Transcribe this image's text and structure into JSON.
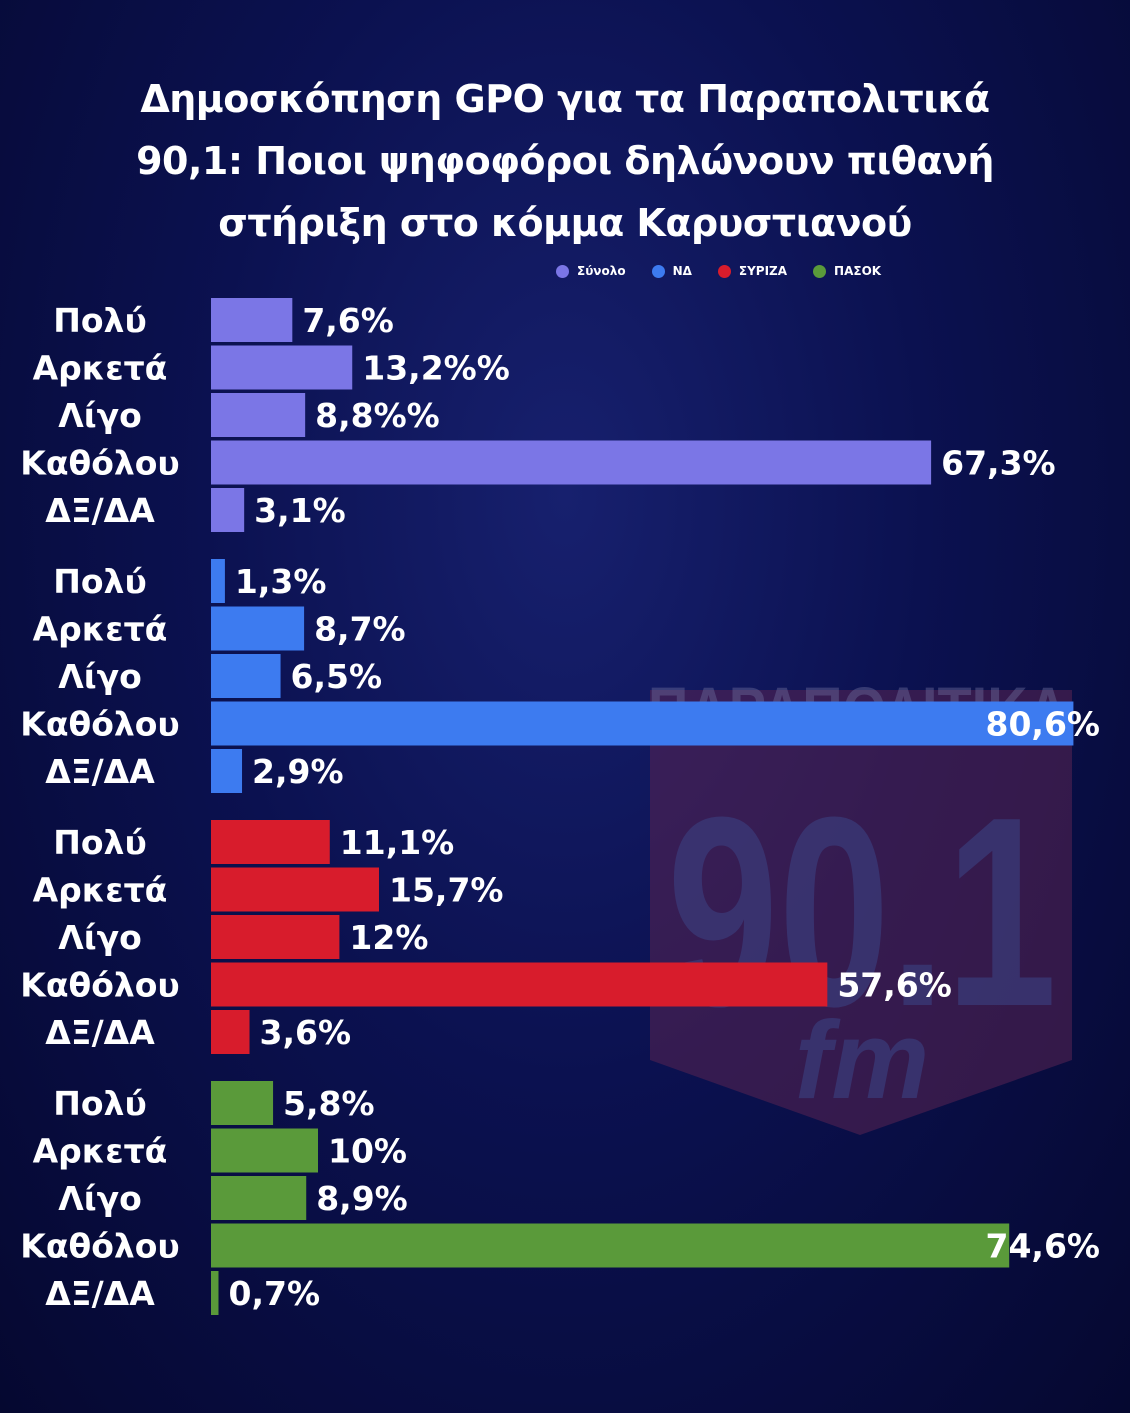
{
  "title_lines": [
    "Δημοσκόπηση GPO για τα Παραπολιτικά",
    "90,1: Ποιοι ψηφοφόροι δηλώνουν πιθανή",
    "στήριξη στο κόμμα Καρυστιανού"
  ],
  "legend": [
    {
      "name": "Σύνολο",
      "color": "#7b76e6"
    },
    {
      "name": "ΝΔ",
      "color": "#3d7bf0"
    },
    {
      "name": "ΣΥΡΙΖΑ",
      "color": "#d81c2c"
    },
    {
      "name": "ΠΑΣΟΚ",
      "color": "#5a9a3a"
    }
  ],
  "watermark": {
    "line1": "ΠΑΡΑΠΟΛΙΤΙΚΑ",
    "line2": "90.1",
    "line3": "fm"
  },
  "chart_data": {
    "type": "bar",
    "orientation": "horizontal",
    "groups": [
      {
        "series": "Σύνολο",
        "color": "#7b76e6",
        "categories": [
          "Πολύ",
          "Αρκετά",
          "Λίγο",
          "Καθόλου",
          "ΔΞ/ΔΑ"
        ],
        "values": [
          7.6,
          13.2,
          8.8,
          67.3,
          3.1
        ],
        "value_labels": [
          "7,6%",
          "13,2%%",
          "8,8%%",
          "67,3%",
          "3,1%"
        ]
      },
      {
        "series": "ΝΔ",
        "color": "#3d7bf0",
        "categories": [
          "Πολύ",
          "Αρκετά",
          "Λίγο",
          "Καθόλου",
          "ΔΞ/ΔΑ"
        ],
        "values": [
          1.3,
          8.7,
          6.5,
          80.6,
          2.9
        ],
        "value_labels": [
          "1,3%",
          "8,7%",
          "6,5%",
          "80,6%",
          "2,9%"
        ]
      },
      {
        "series": "ΣΥΡΙΖΑ",
        "color": "#d81c2c",
        "categories": [
          "Πολύ",
          "Αρκετά",
          "Λίγο",
          "Καθόλου",
          "ΔΞ/ΔΑ"
        ],
        "values": [
          11.1,
          15.7,
          12,
          57.6,
          3.6
        ],
        "value_labels": [
          "11,1%",
          "15,7%",
          "12%",
          "57,6%",
          "3,6%"
        ]
      },
      {
        "series": "ΠΑΣΟΚ",
        "color": "#5a9a3a",
        "categories": [
          "Πολύ",
          "Αρκετά",
          "Λίγο",
          "Καθόλου",
          "ΔΞ/ΔΑ"
        ],
        "values": [
          5.8,
          10,
          8.9,
          74.6,
          0.7
        ],
        "value_labels": [
          "5,8%",
          "10%",
          "8,9%",
          "74,6%",
          "0,7%"
        ]
      }
    ]
  }
}
